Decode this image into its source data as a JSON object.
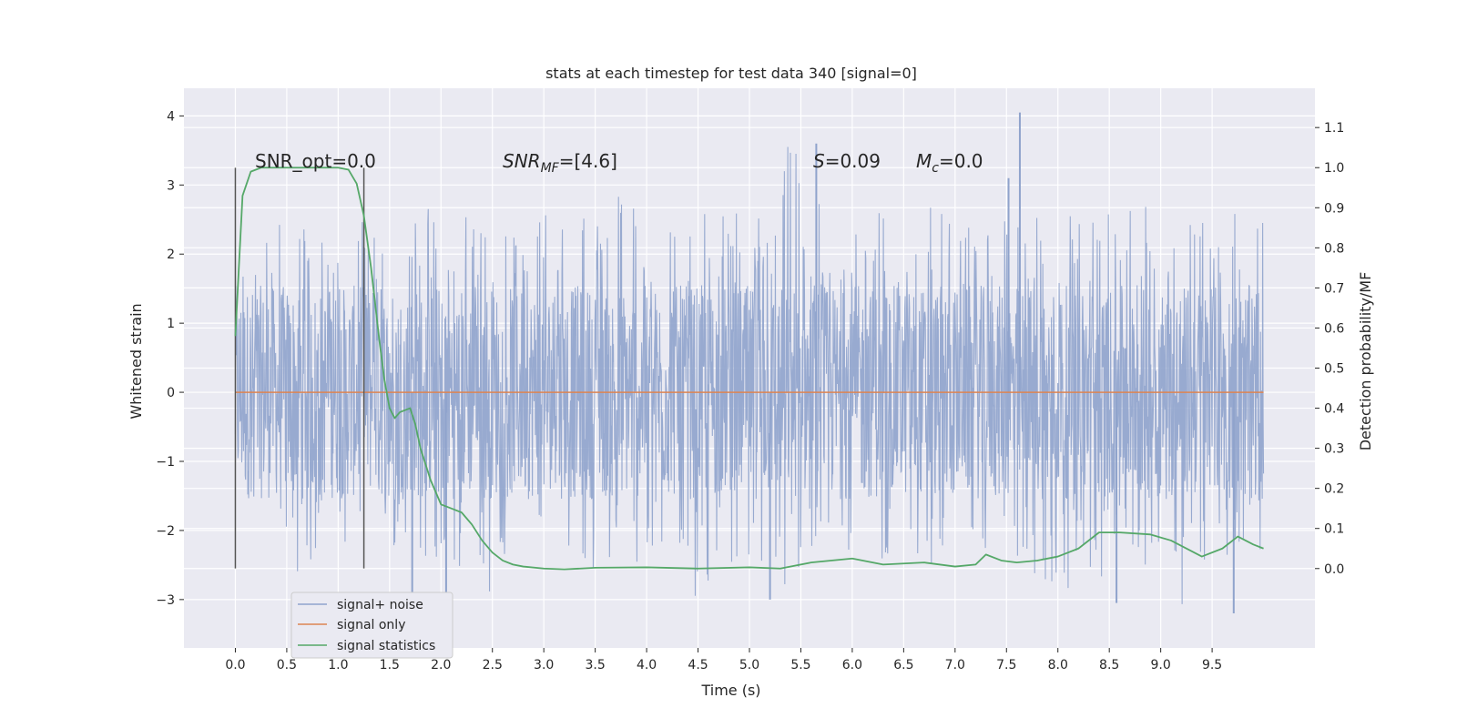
{
  "chart_data": {
    "type": "line",
    "title": "stats at each timestep for test data 340 [signal=0]",
    "xlabel": "Time (s)",
    "ylabel": "Whitened strain",
    "ylabel_right": "Detection probability/MF",
    "xlim": [
      -0.5,
      10.5
    ],
    "ylim": [
      -3.7,
      4.4
    ],
    "ylim_right": [
      -0.198,
      1.198
    ],
    "x_ticks": [
      "0.0",
      "0.5",
      "1.0",
      "1.5",
      "2.0",
      "2.5",
      "3.0",
      "3.5",
      "4.0",
      "4.5",
      "5.0",
      "5.5",
      "6.0",
      "6.5",
      "7.0",
      "7.5",
      "8.0",
      "8.5",
      "9.0",
      "9.5"
    ],
    "x_tick_values": [
      0.0,
      0.5,
      1.0,
      1.5,
      2.0,
      2.5,
      3.0,
      3.5,
      4.0,
      4.5,
      5.0,
      5.5,
      6.0,
      6.5,
      7.0,
      7.5,
      8.0,
      8.5,
      9.0,
      9.5
    ],
    "y_ticks": [
      "−3",
      "−2",
      "−1",
      "0",
      "1",
      "2",
      "3",
      "4"
    ],
    "y_tick_values": [
      -3,
      -2,
      -1,
      0,
      1,
      2,
      3,
      4
    ],
    "y_ticks_right": [
      "0.0",
      "0.1",
      "0.2",
      "0.3",
      "0.4",
      "0.5",
      "0.6",
      "0.7",
      "0.8",
      "0.9",
      "1.0",
      "1.1"
    ],
    "y_tick_values_right": [
      0.0,
      0.1,
      0.2,
      0.3,
      0.4,
      0.5,
      0.6,
      0.7,
      0.8,
      0.9,
      1.0,
      1.1
    ],
    "grid": true,
    "legend": {
      "placement": "lower-left",
      "entries": [
        {
          "label": "signal+ noise",
          "color": "#8fa3cc"
        },
        {
          "label": "signal only",
          "color": "#dd8452"
        },
        {
          "label": "signal statistics",
          "color": "#55a868"
        }
      ]
    },
    "annotations": {
      "snr_opt": "SNR_opt=0.0",
      "snr_mf_base": "SNR",
      "snr_mf_sub": "MF",
      "snr_mf_value": "=[4.6]",
      "s_label": "S",
      "s_value": "=0.09",
      "mc_label": "M",
      "mc_sub": "c",
      "mc_value": "=0.0"
    },
    "vertical_markers": [
      {
        "x": 0.0,
        "y_range": [
          -2.55,
          3.25
        ]
      },
      {
        "x": 1.25,
        "y_range": [
          -2.55,
          3.25
        ]
      }
    ],
    "series": [
      {
        "name": "signal+ noise",
        "axis": "left",
        "style": "noise",
        "x_range": [
          0.0,
          10.0
        ],
        "envelope_upper": [
          2.2,
          2.5,
          2.6,
          2.4,
          2.5,
          2.3,
          2.7,
          2.5,
          2.6,
          2.4,
          2.8,
          2.5,
          2.6,
          2.9,
          2.7,
          2.5,
          2.8,
          2.6,
          2.7,
          3.6,
          2.8,
          2.6,
          2.7,
          2.5,
          2.8,
          2.6,
          2.7,
          2.9,
          2.6,
          2.8,
          3.2,
          2.7,
          2.6,
          2.8,
          2.7,
          2.5
        ],
        "envelope_lower": [
          -1.8,
          -2.3,
          -2.6,
          -2.4,
          -2.5,
          -2.3,
          -2.5,
          -2.6,
          -3.0,
          -2.4,
          -2.6,
          -2.5,
          -2.7,
          -2.4,
          -2.6,
          -2.8,
          -3.0,
          -2.7,
          -2.6,
          -2.9,
          -2.5,
          -2.6,
          -2.5,
          -2.4,
          -2.6,
          -2.9,
          -2.6,
          -2.8,
          -2.9,
          -3.0,
          -2.7,
          -2.6,
          -2.8,
          -3.2,
          -2.5,
          -2.3
        ],
        "spikes": [
          [
            7.63,
            4.05
          ],
          [
            5.65,
            3.6
          ],
          [
            7.52,
            3.1
          ],
          [
            9.71,
            -3.2
          ],
          [
            8.57,
            -3.05
          ],
          [
            5.2,
            -3.0
          ],
          [
            1.72,
            -3.0
          ],
          [
            2.05,
            -3.15
          ]
        ]
      },
      {
        "name": "signal only",
        "axis": "left",
        "x": [
          0.0,
          10.0
        ],
        "y": [
          0.0,
          0.0
        ]
      },
      {
        "name": "signal statistics",
        "axis": "right",
        "x": [
          0.0,
          0.07,
          0.15,
          0.25,
          0.4,
          0.6,
          0.8,
          1.0,
          1.1,
          1.18,
          1.25,
          1.32,
          1.4,
          1.45,
          1.5,
          1.55,
          1.6,
          1.7,
          1.75,
          1.8,
          1.9,
          2.0,
          2.1,
          2.2,
          2.3,
          2.4,
          2.5,
          2.6,
          2.7,
          2.8,
          3.0,
          3.2,
          3.5,
          4.0,
          4.5,
          5.0,
          5.3,
          5.6,
          6.0,
          6.3,
          6.7,
          7.0,
          7.2,
          7.3,
          7.45,
          7.6,
          7.8,
          8.0,
          8.2,
          8.4,
          8.6,
          8.9,
          9.1,
          9.4,
          9.6,
          9.75,
          9.9,
          10.0
        ],
        "y": [
          0.58,
          0.93,
          0.99,
          1.0,
          1.0,
          1.0,
          1.0,
          1.0,
          0.995,
          0.96,
          0.88,
          0.75,
          0.57,
          0.47,
          0.4,
          0.375,
          0.39,
          0.4,
          0.36,
          0.3,
          0.22,
          0.16,
          0.15,
          0.14,
          0.11,
          0.07,
          0.04,
          0.02,
          0.01,
          0.005,
          0.0,
          -0.002,
          0.002,
          0.003,
          0.0,
          0.003,
          0.0,
          0.015,
          0.025,
          0.01,
          0.015,
          0.005,
          0.01,
          0.035,
          0.02,
          0.015,
          0.02,
          0.03,
          0.05,
          0.09,
          0.09,
          0.085,
          0.07,
          0.03,
          0.05,
          0.08,
          0.06,
          0.05
        ]
      }
    ]
  }
}
